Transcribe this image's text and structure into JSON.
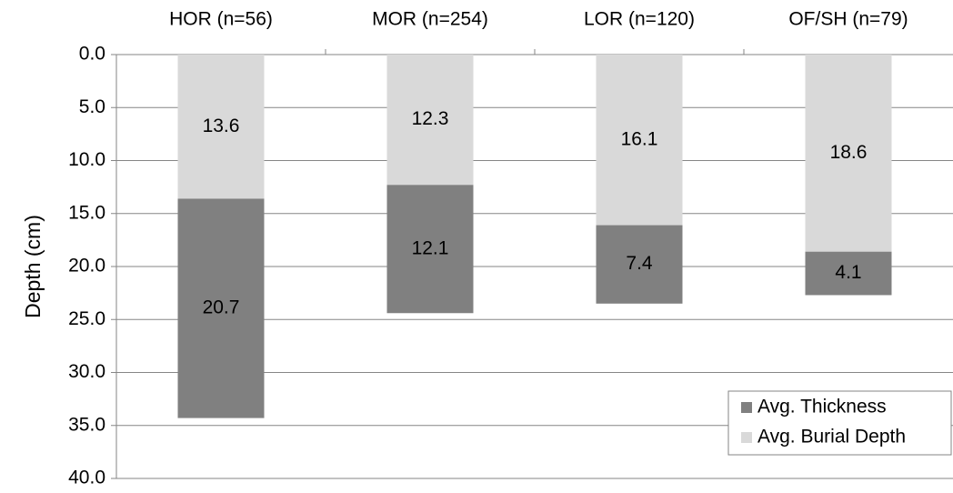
{
  "chart_data": {
    "type": "stacked_bar",
    "y_label": "Depth (cm)",
    "categories": [
      "HOR (n=56)",
      "MOR (n=254)",
      "LOR (n=120)",
      "OF/SH (n=79)"
    ],
    "series": [
      {
        "name": "Avg. Burial Depth",
        "color": "#d9d9d9",
        "values": [
          13.6,
          12.3,
          16.1,
          18.6
        ]
      },
      {
        "name": "Avg. Thickness",
        "color": "#808080",
        "values": [
          20.7,
          12.1,
          7.4,
          4.1
        ]
      }
    ],
    "ylim": [
      0,
      40
    ],
    "y_inverted": true,
    "yticks": [
      {
        "value": 0,
        "label": "0.0"
      },
      {
        "value": 5,
        "label": "5.0"
      },
      {
        "value": 10,
        "label": "10.0"
      },
      {
        "value": 15,
        "label": "15.0"
      },
      {
        "value": 20,
        "label": "20.0"
      },
      {
        "value": 25,
        "label": "25.0"
      },
      {
        "value": 30,
        "label": "30.0"
      },
      {
        "value": 35,
        "label": "35.0"
      },
      {
        "value": 40,
        "label": "40.0"
      }
    ],
    "grid": true,
    "legend_position": "bottom-right"
  }
}
